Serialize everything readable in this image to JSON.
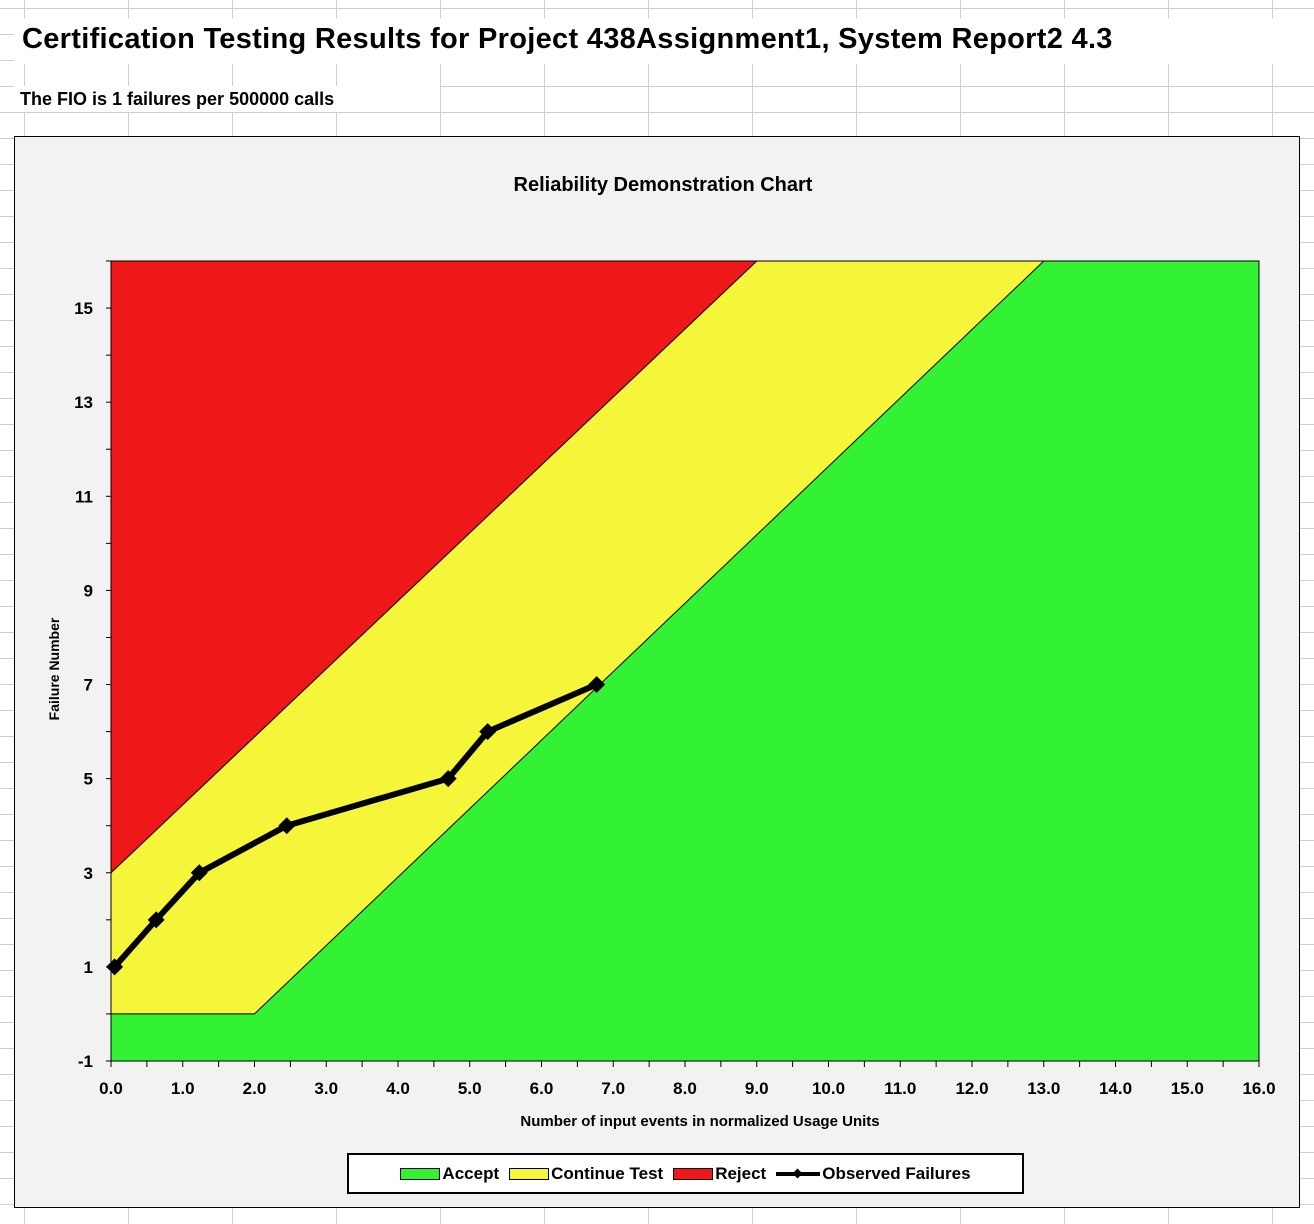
{
  "sheet": {
    "title": "Certification Testing Results for Project 438Assignment1, System Report2 4.3",
    "fio_text": "The FIO is 1 failures per 500000 calls"
  },
  "chart_data": {
    "type": "area",
    "title": "Reliability Demonstration Chart",
    "xlabel": "Number of input events in normalized Usage Units",
    "ylabel": "Failure Number",
    "xlim": [
      0,
      16
    ],
    "ylim": [
      -1,
      16
    ],
    "x_ticks": [
      "0.0",
      "1.0",
      "2.0",
      "3.0",
      "4.0",
      "5.0",
      "6.0",
      "7.0",
      "8.0",
      "9.0",
      "10.0",
      "11.0",
      "12.0",
      "13.0",
      "14.0",
      "15.0",
      "16.0"
    ],
    "y_ticks": [
      "-1",
      "1",
      "3",
      "5",
      "7",
      "9",
      "11",
      "13",
      "15"
    ],
    "regions": [
      {
        "name": "Accept",
        "color": "#33f233",
        "boundary": [
          [
            0,
            0
          ],
          [
            2.0,
            0
          ],
          [
            13.0,
            16
          ]
        ]
      },
      {
        "name": "Continue Test",
        "color": "#f5f53a",
        "boundary": [
          [
            0,
            3
          ],
          [
            0,
            0
          ],
          [
            2.0,
            0
          ],
          [
            13.0,
            16
          ],
          [
            9.0,
            16
          ]
        ]
      },
      {
        "name": "Reject",
        "color": "#ee1818",
        "boundary": [
          [
            0,
            3
          ],
          [
            9.0,
            16
          ]
        ]
      }
    ],
    "series": [
      {
        "name": "Observed Failures",
        "color": "#000000",
        "x": [
          0.05,
          0.63,
          1.23,
          2.45,
          4.7,
          5.25,
          6.77
        ],
        "y": [
          1,
          2,
          3,
          4,
          5,
          6,
          7
        ]
      }
    ],
    "legend": {
      "position": "bottom",
      "items": [
        {
          "label": "Accept",
          "color": "#33f233",
          "kind": "swatch"
        },
        {
          "label": "Continue Test",
          "color": "#f5f53a",
          "kind": "swatch"
        },
        {
          "label": "Reject",
          "color": "#ee1818",
          "kind": "swatch"
        },
        {
          "label": "Observed Failures",
          "color": "#000000",
          "kind": "line"
        }
      ]
    }
  }
}
